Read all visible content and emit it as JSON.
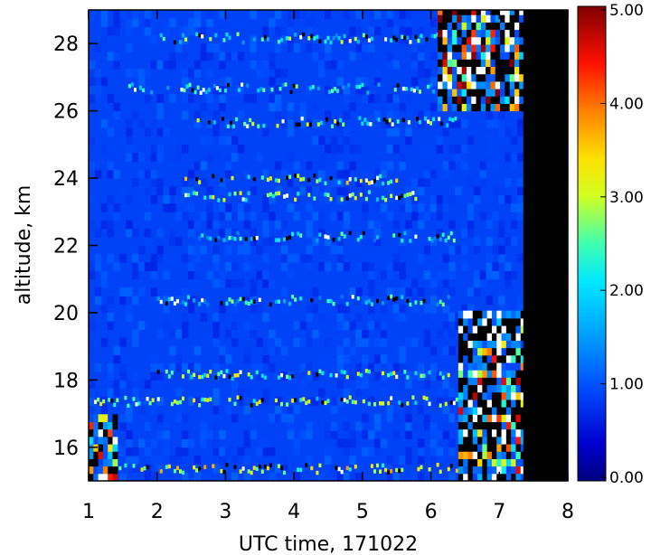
{
  "chart_data": {
    "type": "heatmap",
    "title": "",
    "xlabel": "UTC time, 171022",
    "ylabel": "altitude, km",
    "xlim": [
      1,
      8
    ],
    "ylim": [
      15,
      29
    ],
    "x_ticks": [
      1,
      2,
      3,
      4,
      5,
      6,
      7,
      8
    ],
    "x_tick_labels": [
      "1",
      "2",
      "3",
      "4",
      "5",
      "6",
      "7",
      "8"
    ],
    "y_ticks": [
      16,
      18,
      20,
      22,
      24,
      26,
      28
    ],
    "y_tick_labels": [
      "16",
      "18",
      "20",
      "22",
      "24",
      "26",
      "28"
    ],
    "colorbar": {
      "range": [
        0,
        5
      ],
      "ticks": [
        0,
        1,
        2,
        3,
        4,
        5
      ],
      "tick_labels": [
        "0.00",
        "1.00",
        "2.00",
        "3.00",
        "4.00",
        "5.00"
      ],
      "colormap": "rainbow (dark blue to dark red)"
    },
    "background_value": 0.9,
    "no_data": {
      "x_from": 7.35,
      "x_to": 8,
      "color": "#000000"
    },
    "enhanced_layers": [
      {
        "x_start": 2.0,
        "x_end": 6.3,
        "alt": 28.1,
        "value": 2.2
      },
      {
        "x_start": 1.5,
        "x_end": 6.1,
        "alt": 26.6,
        "value": 2.0
      },
      {
        "x_start": 2.5,
        "x_end": 6.4,
        "alt": 25.6,
        "value": 2.5
      },
      {
        "x_start": 2.4,
        "x_end": 5.6,
        "alt": 23.9,
        "value": 2.8
      },
      {
        "x_start": 2.4,
        "x_end": 5.8,
        "alt": 23.4,
        "value": 2.6
      },
      {
        "x_start": 2.6,
        "x_end": 6.4,
        "alt": 22.2,
        "value": 2.0
      },
      {
        "x_start": 2.0,
        "x_end": 6.3,
        "alt": 20.3,
        "value": 2.0
      },
      {
        "x_start": 2.0,
        "x_end": 6.3,
        "alt": 18.1,
        "value": 2.6
      },
      {
        "x_start": 1.0,
        "x_end": 6.4,
        "alt": 17.3,
        "value": 2.6
      },
      {
        "x_start": 1.0,
        "x_end": 6.4,
        "alt": 15.3,
        "value": 3.0
      }
    ],
    "high_value_regions": [
      {
        "x": [
          6.1,
          7.35
        ],
        "y": [
          26.0,
          29.0
        ],
        "value": 4.5
      },
      {
        "x": [
          6.4,
          7.35
        ],
        "y": [
          15.0,
          20.0
        ],
        "value": 4.0
      },
      {
        "x": [
          1.0,
          1.4
        ],
        "y": [
          15.0,
          16.9
        ],
        "value": 4.0
      }
    ]
  }
}
